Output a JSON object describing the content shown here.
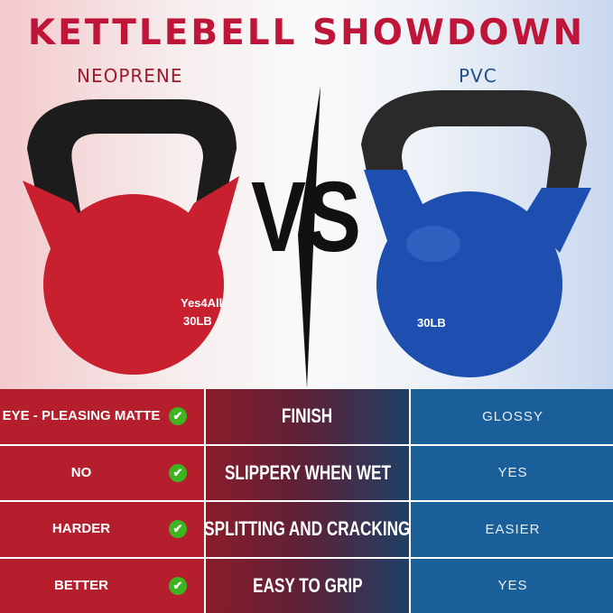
{
  "title": "KETTLEBELL SHOWDOWN",
  "left_label": "NEOPRENE",
  "right_label": "PVC",
  "vs_text": "VS",
  "left_bell": {
    "brand": "Yes4All",
    "weight": "30LB",
    "color": "#c8202e"
  },
  "right_bell": {
    "weight": "30LB",
    "color": "#1e4fb0"
  },
  "rows": [
    {
      "neoprene": "EYE - PLEASING MATTE",
      "feature": "FINISH",
      "pvc": "GLOSSY"
    },
    {
      "neoprene": "NO",
      "feature": "SLIPPERY WHEN WET",
      "pvc": "YES"
    },
    {
      "neoprene": "HARDER",
      "feature": "SPLITTING AND CRACKING",
      "pvc": "EASIER"
    },
    {
      "neoprene": "BETTER",
      "feature": "EASY TO GRIP",
      "pvc": "YES"
    }
  ],
  "check_icon": "✔"
}
